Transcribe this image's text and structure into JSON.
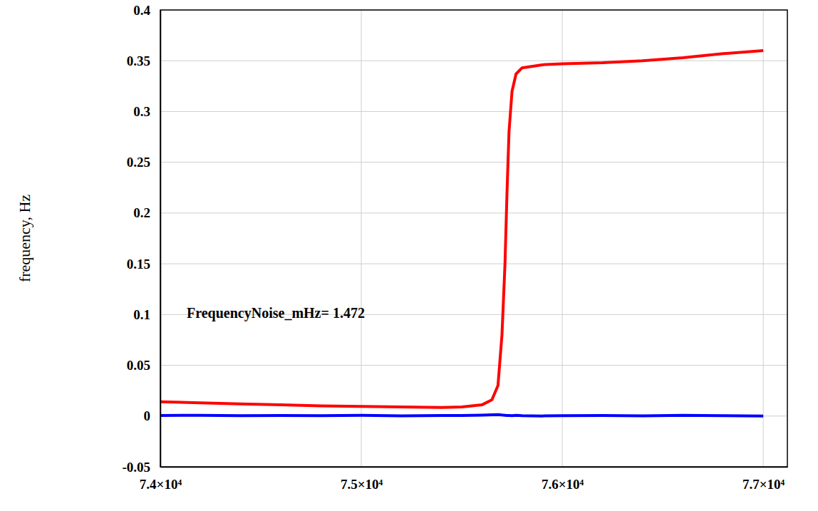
{
  "chart_data": {
    "type": "line",
    "y_label": "frequency, Hz",
    "annotations": [
      "FrequencyNoise_mHz= 1.472"
    ],
    "x": [
      74000,
      74200,
      74400,
      74600,
      74800,
      75000,
      75200,
      75400,
      75500,
      75600,
      75650,
      75680,
      75700,
      75715,
      75725,
      75735,
      75750,
      75770,
      75800,
      75900,
      76000,
      76200,
      76400,
      76600,
      76800,
      77000
    ],
    "series": [
      {
        "color": "#ff0000",
        "values": [
          0.014,
          0.013,
          0.012,
          0.011,
          0.01,
          0.0095,
          0.009,
          0.0085,
          0.009,
          0.011,
          0.016,
          0.03,
          0.08,
          0.15,
          0.22,
          0.28,
          0.32,
          0.337,
          0.343,
          0.346,
          0.347,
          0.348,
          0.35,
          0.353,
          0.357,
          0.36
        ]
      },
      {
        "color": "#0000ff",
        "values": [
          0.0005,
          0.0008,
          0.0003,
          0.0006,
          0.0004,
          0.0007,
          0.0002,
          0.0005,
          0.0006,
          0.0009,
          0.0012,
          0.0015,
          0.001,
          0.0008,
          0.0006,
          0.0005,
          0.0004,
          0.0007,
          0.0003,
          0.0001,
          0.0004,
          0.0006,
          0.0002,
          0.0008,
          0.0004,
          0.0001
        ]
      }
    ],
    "xlim": [
      74000,
      77120
    ],
    "xticks": [
      {
        "value": 74000,
        "label": "7.4×10⁴"
      },
      {
        "value": 75000,
        "label": "7.5×10⁴"
      },
      {
        "value": 76000,
        "label": "7.6×10⁴"
      },
      {
        "value": 77000,
        "label": "7.7×10⁴"
      }
    ],
    "ylim": [
      -0.05,
      0.4
    ],
    "yticks": [
      -0.05,
      0,
      0.05,
      0.1,
      0.15,
      0.2,
      0.25,
      0.3,
      0.35,
      0.4
    ],
    "grid": true
  }
}
